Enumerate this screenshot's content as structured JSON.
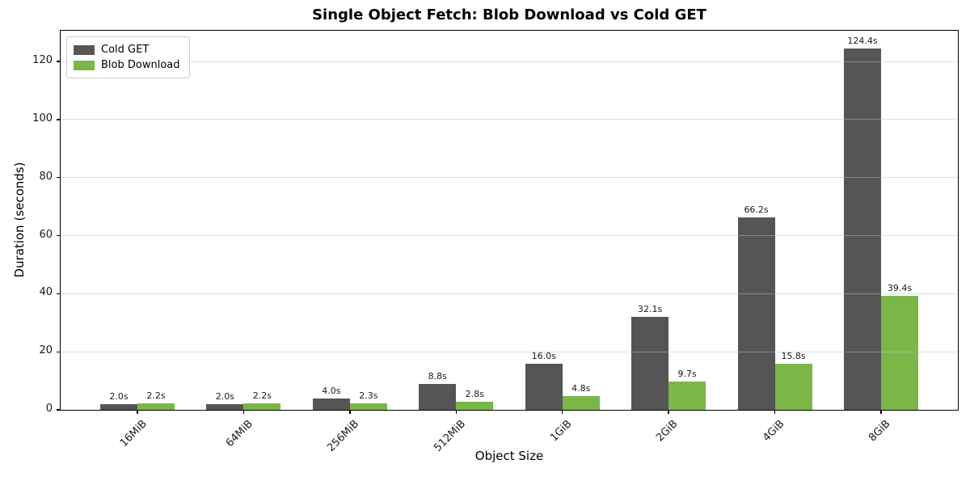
{
  "chart_data": {
    "type": "bar",
    "title": "Single Object Fetch: Blob Download vs Cold GET",
    "xlabel": "Object Size",
    "ylabel": "Duration (seconds)",
    "categories": [
      "16MiB",
      "64MiB",
      "256MiB",
      "512MiB",
      "1GiB",
      "2GiB",
      "4GiB",
      "8GiB"
    ],
    "series": [
      {
        "name": "Cold GET",
        "color": "#555555",
        "values": [
          2.0,
          2.0,
          4.0,
          8.8,
          16.0,
          32.1,
          66.2,
          124.4
        ],
        "labels": [
          "2.0s",
          "2.0s",
          "4.0s",
          "8.8s",
          "16.0s",
          "32.1s",
          "66.2s",
          "124.4s"
        ]
      },
      {
        "name": "Blob Download",
        "color": "#7AB648",
        "values": [
          2.2,
          2.2,
          2.3,
          2.8,
          4.8,
          9.7,
          15.8,
          39.4
        ],
        "labels": [
          "2.2s",
          "2.2s",
          "2.3s",
          "2.8s",
          "4.8s",
          "9.7s",
          "15.8s",
          "39.4s"
        ]
      }
    ],
    "ylim": [
      0,
      130.6
    ],
    "yticks": [
      0,
      20,
      40,
      60,
      80,
      100,
      120
    ],
    "grid": "horizontal",
    "legend_position": "upper-left"
  }
}
